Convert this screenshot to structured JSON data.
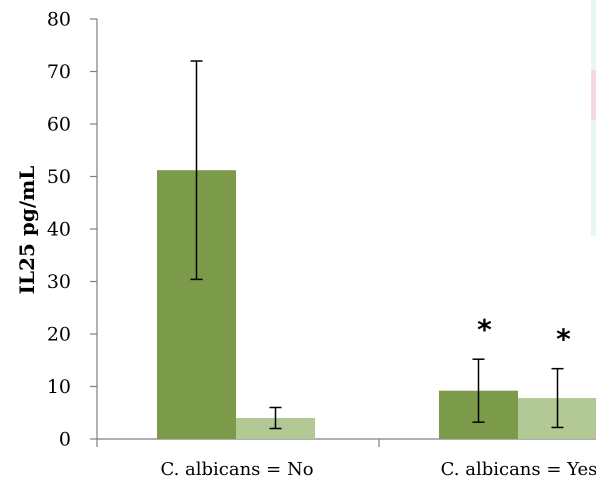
{
  "chart_data": {
    "type": "bar",
    "categories": [
      "C. albicans = No",
      "C. albicans = Yes"
    ],
    "series": [
      {
        "values": [
          51.2,
          9.2
        ],
        "errors": [
          20.8,
          6.0
        ],
        "color": "#7b9a4a"
      },
      {
        "values": [
          4.0,
          7.8
        ],
        "errors": [
          2.0,
          5.6
        ],
        "color": "#b3c995"
      }
    ],
    "annotations": [
      {
        "category": 1,
        "series": 0,
        "text": "*"
      },
      {
        "category": 1,
        "series": 1,
        "text": "*"
      }
    ],
    "ylabel": "IL25 pg/mL",
    "xlabel": "",
    "title": "",
    "ylim": [
      0,
      80
    ],
    "yticks": [
      0,
      10,
      20,
      30,
      40,
      50,
      60,
      70,
      80
    ],
    "grid": false
  },
  "colors": {
    "axis": "#808080",
    "side_strip": "#e9f6f8",
    "side_mark": "#f6d9dc"
  }
}
